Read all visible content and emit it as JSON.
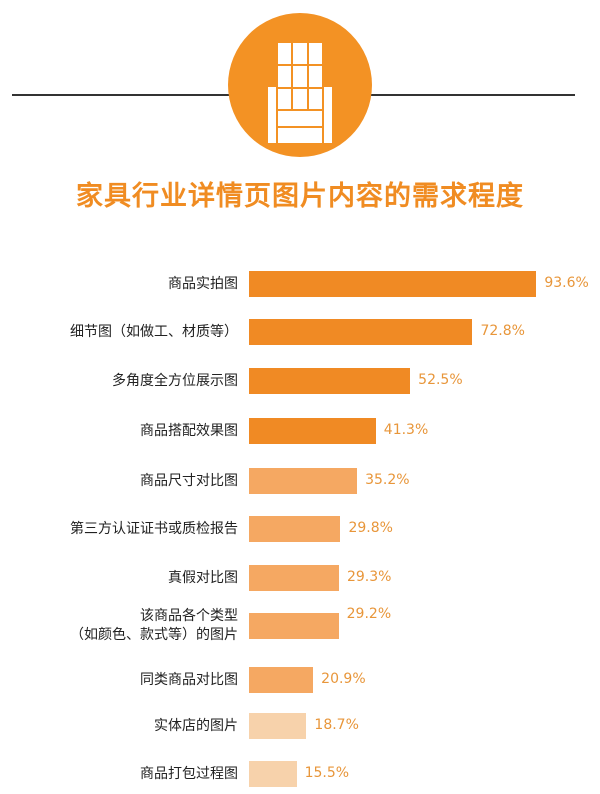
{
  "chart_data": {
    "type": "bar",
    "orientation": "horizontal",
    "title": "家具行业详情页图片内容的需求程度",
    "categories": [
      "商品实拍图",
      "细节图（如做工、材质等）",
      "多角度全方位展示图",
      "商品搭配效果图",
      "商品尺寸对比图",
      "第三方认证证书或质检报告",
      "真假对比图",
      "该商品各个类型（如颜色、款式等）的图片",
      "同类商品对比图",
      "实体店的图片",
      "商品打包过程图"
    ],
    "category_lines": [
      [
        "商品实拍图"
      ],
      [
        "细节图（如做工、材质等）"
      ],
      [
        "多角度全方位展示图"
      ],
      [
        "商品搭配效果图"
      ],
      [
        "商品尺寸对比图"
      ],
      [
        "第三方认证证书或质检报告"
      ],
      [
        "真假对比图"
      ],
      [
        "该商品各个类型",
        "（如颜色、款式等）的图片"
      ],
      [
        "同类商品对比图"
      ],
      [
        "实体店的图片"
      ],
      [
        "商品打包过程图"
      ]
    ],
    "values": [
      93.6,
      72.8,
      52.5,
      41.3,
      35.2,
      29.8,
      29.3,
      29.2,
      20.9,
      18.7,
      15.5
    ],
    "value_labels": [
      "93.6%",
      "72.8%",
      "52.5%",
      "41.3%",
      "35.2%",
      "29.8%",
      "29.3%",
      "29.2%",
      "20.9%",
      "18.7%",
      "15.5%"
    ],
    "bar_colors": [
      "#f08a24",
      "#f08a24",
      "#f08a24",
      "#f08a24",
      "#f5a862",
      "#f5a862",
      "#f5a862",
      "#f5a862",
      "#f5a862",
      "#f7d2ab",
      "#f7d2ab"
    ],
    "xlim": [
      0,
      100
    ],
    "grid": false
  },
  "icon": {
    "name": "armchair-icon",
    "color": "#f39224"
  },
  "colors": {
    "title": "#f08c22",
    "value_label": "#e8963a"
  }
}
